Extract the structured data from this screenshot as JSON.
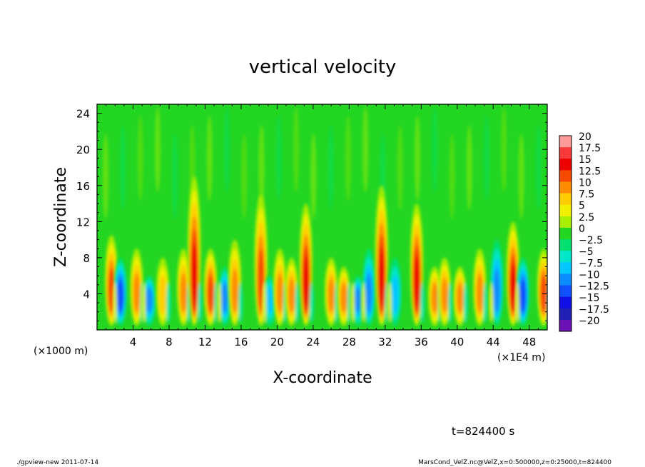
{
  "chart_data": {
    "type": "heatmap",
    "title": "vertical velocity",
    "xlabel": "X-coordinate",
    "ylabel": "Z-coordinate",
    "x_unit_left": "(×1000 m)",
    "x_unit_right": "(×1E4 m)",
    "xlim": [
      0,
      50
    ],
    "ylim": [
      0,
      25
    ],
    "x_ticks": [
      "4",
      "8",
      "12",
      "16",
      "20",
      "24",
      "28",
      "32",
      "36",
      "40",
      "44",
      "48"
    ],
    "y_ticks": [
      "4",
      "8",
      "12",
      "16",
      "20",
      "24"
    ],
    "colorbar": {
      "labels": [
        "20",
        "17.5",
        "15",
        "12.5",
        "10",
        "7.5",
        "5",
        "2.5",
        "0",
        "−2.5",
        "−5",
        "−7.5",
        "−10",
        "−12.5",
        "−15",
        "−17.5",
        "−20"
      ],
      "colors": [
        "#ff9a9a",
        "#f83a3a",
        "#ec0000",
        "#f64a00",
        "#ff8c00",
        "#ffcc00",
        "#f0f000",
        "#a8ee00",
        "#22d622",
        "#00e070",
        "#00e6c8",
        "#00c8ff",
        "#0a8cff",
        "#1050ff",
        "#1010e6",
        "#2020b4",
        "#6a10b4"
      ]
    },
    "plumes": [
      {
        "x": 1.6,
        "top": 10.5,
        "peak": 13.5
      },
      {
        "x": 2.6,
        "top": 8,
        "peak": -12
      },
      {
        "x": 4.4,
        "top": 9,
        "peak": 10
      },
      {
        "x": 5.8,
        "top": 6,
        "peak": -9
      },
      {
        "x": 7.3,
        "top": 8,
        "peak": 8
      },
      {
        "x": 9.6,
        "top": 9,
        "peak": 11
      },
      {
        "x": 10.8,
        "top": 17,
        "peak": 15
      },
      {
        "x": 12.6,
        "top": 9,
        "peak": 13
      },
      {
        "x": 14.2,
        "top": 7,
        "peak": -9
      },
      {
        "x": 15.3,
        "top": 10,
        "peak": 9
      },
      {
        "x": 18.2,
        "top": 15,
        "peak": 13
      },
      {
        "x": 19.2,
        "top": 6,
        "peak": -8
      },
      {
        "x": 20.3,
        "top": 9,
        "peak": 9
      },
      {
        "x": 21.6,
        "top": 8,
        "peak": 10
      },
      {
        "x": 23.2,
        "top": 14,
        "peak": 14
      },
      {
        "x": 26,
        "top": 8,
        "peak": 9
      },
      {
        "x": 27.4,
        "top": 7,
        "peak": 10
      },
      {
        "x": 29,
        "top": 6,
        "peak": -9
      },
      {
        "x": 30.2,
        "top": 9,
        "peak": -11
      },
      {
        "x": 31.6,
        "top": 16,
        "peak": 15
      },
      {
        "x": 33.1,
        "top": 8,
        "peak": -8
      },
      {
        "x": 35.5,
        "top": 14,
        "peak": 14
      },
      {
        "x": 37.5,
        "top": 7,
        "peak": 9
      },
      {
        "x": 38.6,
        "top": 8,
        "peak": 11
      },
      {
        "x": 40.3,
        "top": 7,
        "peak": 10
      },
      {
        "x": 42.5,
        "top": 9,
        "peak": 9
      },
      {
        "x": 44.4,
        "top": 10,
        "peak": -10
      },
      {
        "x": 46.2,
        "top": 12,
        "peak": 14
      },
      {
        "x": 47.3,
        "top": 8,
        "peak": -12
      },
      {
        "x": 49.6,
        "top": 9,
        "peak": 12
      }
    ]
  },
  "annotations": {
    "time": "t=824400 s",
    "footer_left": "./gpview-new   2011-07-14",
    "footer_right": "MarsCond_VelZ.nc@VelZ,x=0:500000,z=0:25000,t=824400"
  }
}
